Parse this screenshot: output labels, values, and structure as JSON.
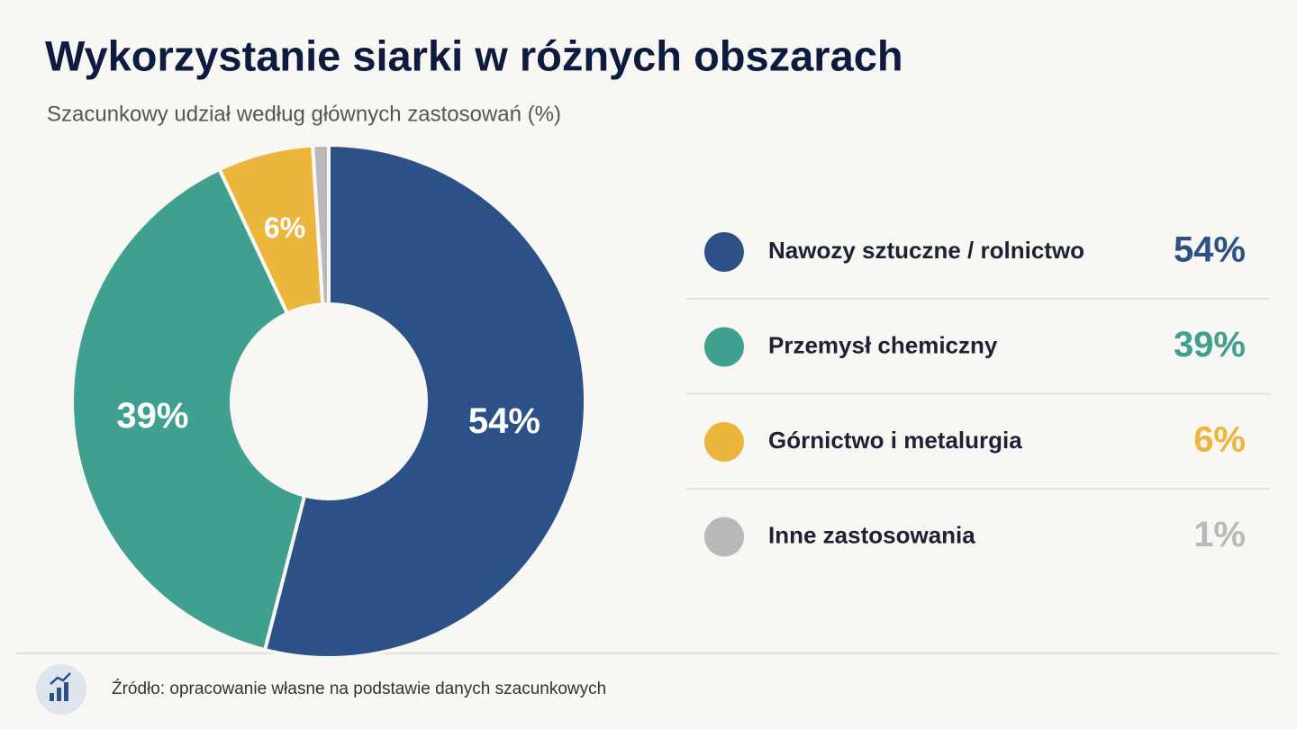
{
  "chart_data": {
    "type": "pie",
    "title": "Wykorzystanie siarki w różnych obszarach",
    "subtitle": "Szacunkowy udział według głównych zastosowań (%)",
    "categories": [
      "Nawozy sztuczne / rolnictwo",
      "Przemysł chemiczny",
      "Górnictwo i metalurgia",
      "Inne zastosowania"
    ],
    "values": [
      54,
      39,
      6,
      1
    ],
    "value_labels": [
      "54%",
      "39%",
      "6%",
      "1%"
    ],
    "colors": [
      "#2c5187",
      "#40a08f",
      "#ecb53b",
      "#b9b9b9"
    ],
    "donut": true,
    "source": "Źródło: opracowanie własne na podstawie danych szacunkowych"
  }
}
